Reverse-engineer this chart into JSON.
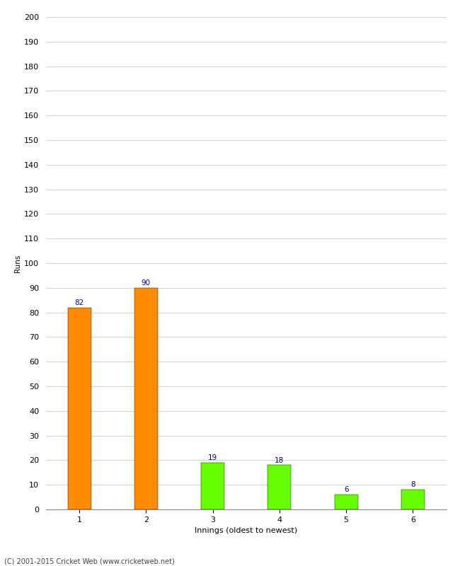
{
  "categories": [
    "1",
    "2",
    "3",
    "4",
    "5",
    "6"
  ],
  "values": [
    82,
    90,
    19,
    18,
    6,
    8
  ],
  "bar_colors": [
    "#ff8c00",
    "#ff8c00",
    "#66ff00",
    "#66ff00",
    "#66ff00",
    "#66ff00"
  ],
  "title": "",
  "xlabel": "Innings (oldest to newest)",
  "ylabel": "Runs",
  "ylim": [
    0,
    200
  ],
  "yticks": [
    0,
    10,
    20,
    30,
    40,
    50,
    60,
    70,
    80,
    90,
    100,
    110,
    120,
    130,
    140,
    150,
    160,
    170,
    180,
    190,
    200
  ],
  "label_color": "#000080",
  "label_fontsize": 7.5,
  "footer": "(C) 2001-2015 Cricket Web (www.cricketweb.net)",
  "background_color": "#ffffff",
  "bar_edge_color": "#000000",
  "bar_edge_width": 0.3,
  "bar_width": 0.35
}
